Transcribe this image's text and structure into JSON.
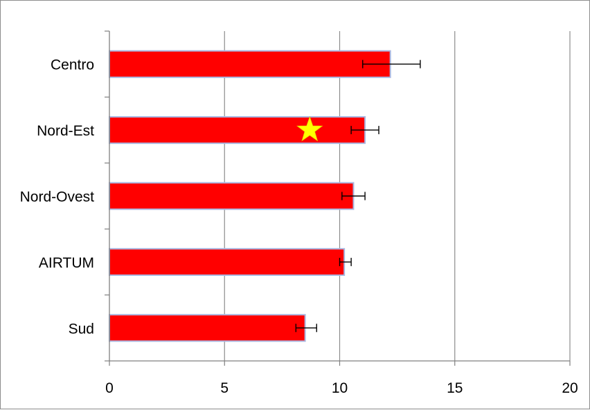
{
  "chart_data": {
    "type": "bar",
    "orientation": "horizontal",
    "categories": [
      "Centro",
      "Nord-Est",
      "Nord-Ovest",
      "AIRTUM",
      "Sud"
    ],
    "values": [
      12.2,
      11.1,
      10.6,
      10.2,
      8.5
    ],
    "error_low": [
      11.0,
      10.5,
      10.1,
      10.0,
      8.1
    ],
    "error_high": [
      13.5,
      11.7,
      11.1,
      10.5,
      9.0
    ],
    "xlim": [
      0,
      20
    ],
    "xticks": [
      "0",
      "5",
      "10",
      "15",
      "20"
    ],
    "grid": "vertical",
    "legend": "none",
    "bar_color": "#ff0000",
    "bar_edge_color": "#a9b6e0",
    "annotation": {
      "type": "star",
      "category": "Nord-Est",
      "value": 8.7,
      "color": "#ffff00"
    },
    "title": "",
    "xlabel": "",
    "ylabel": ""
  }
}
